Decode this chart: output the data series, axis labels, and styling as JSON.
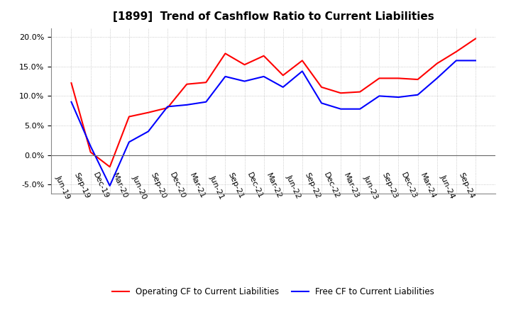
{
  "title": "[1899]  Trend of Cashflow Ratio to Current Liabilities",
  "x_labels": [
    "Jun-19",
    "Sep-19",
    "Dec-19",
    "Mar-20",
    "Jun-20",
    "Sep-20",
    "Dec-20",
    "Mar-21",
    "Jun-21",
    "Sep-21",
    "Dec-21",
    "Mar-22",
    "Jun-22",
    "Sep-22",
    "Dec-22",
    "Mar-23",
    "Jun-23",
    "Sep-23",
    "Dec-23",
    "Mar-24",
    "Jun-24",
    "Sep-24"
  ],
  "operating_cf": [
    12.2,
    0.5,
    -2.0,
    6.5,
    7.2,
    8.0,
    12.0,
    12.3,
    17.2,
    15.3,
    16.8,
    13.5,
    16.0,
    11.5,
    10.5,
    10.7,
    13.0,
    13.0,
    12.8,
    15.5,
    17.5,
    19.7
  ],
  "free_cf": [
    9.0,
    1.5,
    -5.2,
    2.2,
    4.0,
    8.2,
    8.5,
    9.0,
    13.3,
    12.5,
    13.3,
    11.5,
    14.2,
    8.8,
    7.8,
    7.8,
    10.0,
    9.8,
    10.2,
    13.0,
    16.0,
    16.0
  ],
  "operating_color": "#FF0000",
  "free_color": "#0000FF",
  "ylim": [
    -6.5,
    21.5
  ],
  "yticks": [
    -5.0,
    0.0,
    5.0,
    10.0,
    15.0,
    20.0
  ],
  "background_color": "#FFFFFF",
  "plot_bg_color": "#FFFFFF",
  "grid_color": "#BBBBBB",
  "title_fontsize": 11,
  "tick_fontsize": 8,
  "legend_labels": [
    "Operating CF to Current Liabilities",
    "Free CF to Current Liabilities"
  ]
}
